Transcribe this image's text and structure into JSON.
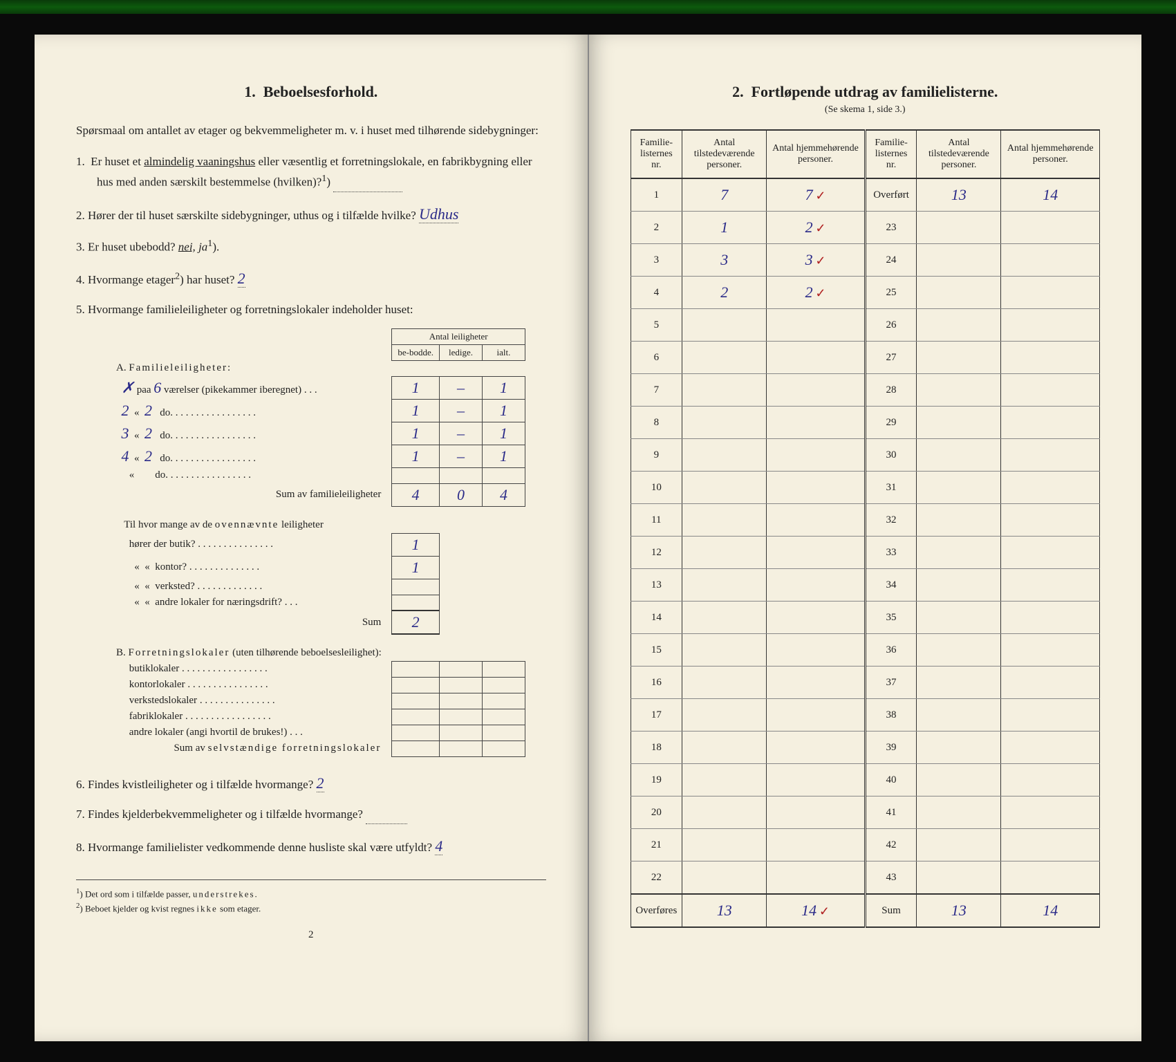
{
  "left": {
    "section_num": "1.",
    "section_title": "Beboelsesforhold.",
    "intro": "Spørsmaal om antallet av etager og bekvemmeligheter m. v. i huset med tilhørende sidebygninger:",
    "q1_num": "1.",
    "q1": "Er huset et almindelig vaaningshus eller væsentlig et forretningslokale, en fabrikbygning eller hus med anden særskilt bestemmelse (hvilken)?",
    "q1_sup": "1",
    "q2_num": "2.",
    "q2a": "Hører der til huset særskilte sidebygninger, uthus og i tilfælde hvilke?",
    "q2_ans": "Udhus",
    "q3_num": "3.",
    "q3": "Er huset ubebodd?",
    "q3_opts_a": "nei,",
    "q3_opts_b": "ja",
    "q3_sup": "1",
    "q4_num": "4.",
    "q4": "Hvormange etager",
    "q4_sup": "2",
    "q4b": ") har huset?",
    "q4_ans": "2",
    "q5_num": "5.",
    "q5": "Hvormange familieleiligheter og forretningslokaler indeholder huset:",
    "tbl_hdr": "Antal leiligheter",
    "tbl_h1": "be-bodde.",
    "tbl_h2": "ledige.",
    "tbl_h3": "ialt.",
    "secA": "A.",
    "secA_t": "Familieleiligheter:",
    "rowA1_pre": "✗",
    "rowA1_a": "paa",
    "rowA1_n": "6",
    "rowA1_b": "værelser (pikekammer iberegnet) . . .",
    "rowA1_v1": "1",
    "rowA1_v2": "–",
    "rowA1_v3": "1",
    "rowA2_pre": "2",
    "rowA2_n": "2",
    "rowA2_b": "do.",
    "rowA2_v1": "1",
    "rowA2_v2": "–",
    "rowA2_v3": "1",
    "rowA3_pre": "3",
    "rowA3_n": "2",
    "rowA3_v1": "1",
    "rowA3_v2": "–",
    "rowA3_v3": "1",
    "rowA4_pre": "4",
    "rowA4_n": "2",
    "rowA4_v1": "1",
    "rowA4_v2": "–",
    "rowA4_v3": "1",
    "rowAsum": "Sum av familieleiligheter",
    "rowAsum_v1": "4",
    "rowAsum_v2": "0",
    "rowAsum_v3": "4",
    "secA2": "Til hvor mange av de ovennævnte leiligheter",
    "rowB1": "hører der butik?",
    "rowB1_v": "1",
    "rowB2": "kontor?",
    "rowB2_v": "1",
    "rowB3": "verksted?",
    "rowB4": "andre lokaler for næringsdrift?",
    "rowBsum": "Sum",
    "rowBsum_v": "2",
    "secB": "B.",
    "secB_t": "Forretningslokaler (uten tilhørende beboelsesleilighet):",
    "rowC1": "butiklokaler",
    "rowC2": "kontorlokaler",
    "rowC3": "verkstedslokaler",
    "rowC4": "fabriklokaler",
    "rowC5": "andre lokaler (angi hvortil de brukes!)",
    "rowCsum": "Sum av selvstændige forretningslokaler",
    "q6_num": "6.",
    "q6": "Findes kvistleiligheter og i tilfælde hvormange?",
    "q6_ans": "2",
    "q7_num": "7.",
    "q7": "Findes kjelderbekvemmeligheter og i tilfælde hvormange?",
    "q8_num": "8.",
    "q8": "Hvormange familielister vedkommende denne husliste skal være utfyldt?",
    "q8_ans": "4",
    "fn1_n": "1",
    "fn1": "Det ord som i tilfælde passer, understrekes.",
    "fn2_n": "2",
    "fn2": "Beboet kjelder og kvist regnes ikke som etager.",
    "pagenum": "2"
  },
  "right": {
    "section_num": "2.",
    "section_title": "Fortløpende utdrag av familielisterne.",
    "subtitle": "(Se skema 1, side 3.)",
    "h1": "Familie-listernes nr.",
    "h2": "Antal tilstedeværende personer.",
    "h3": "Antal hjemmehørende personer.",
    "rows_left": [
      {
        "n": "1",
        "a": "7",
        "b": "7",
        "m": "✓"
      },
      {
        "n": "2",
        "a": "1",
        "b": "2",
        "m": "✓"
      },
      {
        "n": "3",
        "a": "3",
        "b": "3",
        "m": "✓"
      },
      {
        "n": "4",
        "a": "2",
        "b": "2",
        "m": "✓"
      },
      {
        "n": "5",
        "a": "",
        "b": "",
        "m": ""
      },
      {
        "n": "6",
        "a": "",
        "b": "",
        "m": ""
      },
      {
        "n": "7",
        "a": "",
        "b": "",
        "m": ""
      },
      {
        "n": "8",
        "a": "",
        "b": "",
        "m": ""
      },
      {
        "n": "9",
        "a": "",
        "b": "",
        "m": ""
      },
      {
        "n": "10",
        "a": "",
        "b": "",
        "m": ""
      },
      {
        "n": "11",
        "a": "",
        "b": "",
        "m": ""
      },
      {
        "n": "12",
        "a": "",
        "b": "",
        "m": ""
      },
      {
        "n": "13",
        "a": "",
        "b": "",
        "m": ""
      },
      {
        "n": "14",
        "a": "",
        "b": "",
        "m": ""
      },
      {
        "n": "15",
        "a": "",
        "b": "",
        "m": ""
      },
      {
        "n": "16",
        "a": "",
        "b": "",
        "m": ""
      },
      {
        "n": "17",
        "a": "",
        "b": "",
        "m": ""
      },
      {
        "n": "18",
        "a": "",
        "b": "",
        "m": ""
      },
      {
        "n": "19",
        "a": "",
        "b": "",
        "m": ""
      },
      {
        "n": "20",
        "a": "",
        "b": "",
        "m": ""
      },
      {
        "n": "21",
        "a": "",
        "b": "",
        "m": ""
      },
      {
        "n": "22",
        "a": "",
        "b": "",
        "m": ""
      }
    ],
    "rows_right": [
      {
        "n": "Overført",
        "a": "13",
        "b": "14"
      },
      {
        "n": "23",
        "a": "",
        "b": ""
      },
      {
        "n": "24",
        "a": "",
        "b": ""
      },
      {
        "n": "25",
        "a": "",
        "b": ""
      },
      {
        "n": "26",
        "a": "",
        "b": ""
      },
      {
        "n": "27",
        "a": "",
        "b": ""
      },
      {
        "n": "28",
        "a": "",
        "b": ""
      },
      {
        "n": "29",
        "a": "",
        "b": ""
      },
      {
        "n": "30",
        "a": "",
        "b": ""
      },
      {
        "n": "31",
        "a": "",
        "b": ""
      },
      {
        "n": "32",
        "a": "",
        "b": ""
      },
      {
        "n": "33",
        "a": "",
        "b": ""
      },
      {
        "n": "34",
        "a": "",
        "b": ""
      },
      {
        "n": "35",
        "a": "",
        "b": ""
      },
      {
        "n": "36",
        "a": "",
        "b": ""
      },
      {
        "n": "37",
        "a": "",
        "b": ""
      },
      {
        "n": "38",
        "a": "",
        "b": ""
      },
      {
        "n": "39",
        "a": "",
        "b": ""
      },
      {
        "n": "40",
        "a": "",
        "b": ""
      },
      {
        "n": "41",
        "a": "",
        "b": ""
      },
      {
        "n": "42",
        "a": "",
        "b": ""
      },
      {
        "n": "43",
        "a": "",
        "b": ""
      }
    ],
    "sum_left_label": "Overføres",
    "sum_left_a": "13",
    "sum_left_b": "14",
    "sum_left_m": "✓",
    "sum_right_label": "Sum",
    "sum_right_a": "13",
    "sum_right_b": "14"
  },
  "colors": {
    "paper": "#f5f0e0",
    "ink": "#222222",
    "handwriting": "#2a2a88",
    "handwriting_red": "#b02020",
    "background": "#0a0a0a"
  }
}
